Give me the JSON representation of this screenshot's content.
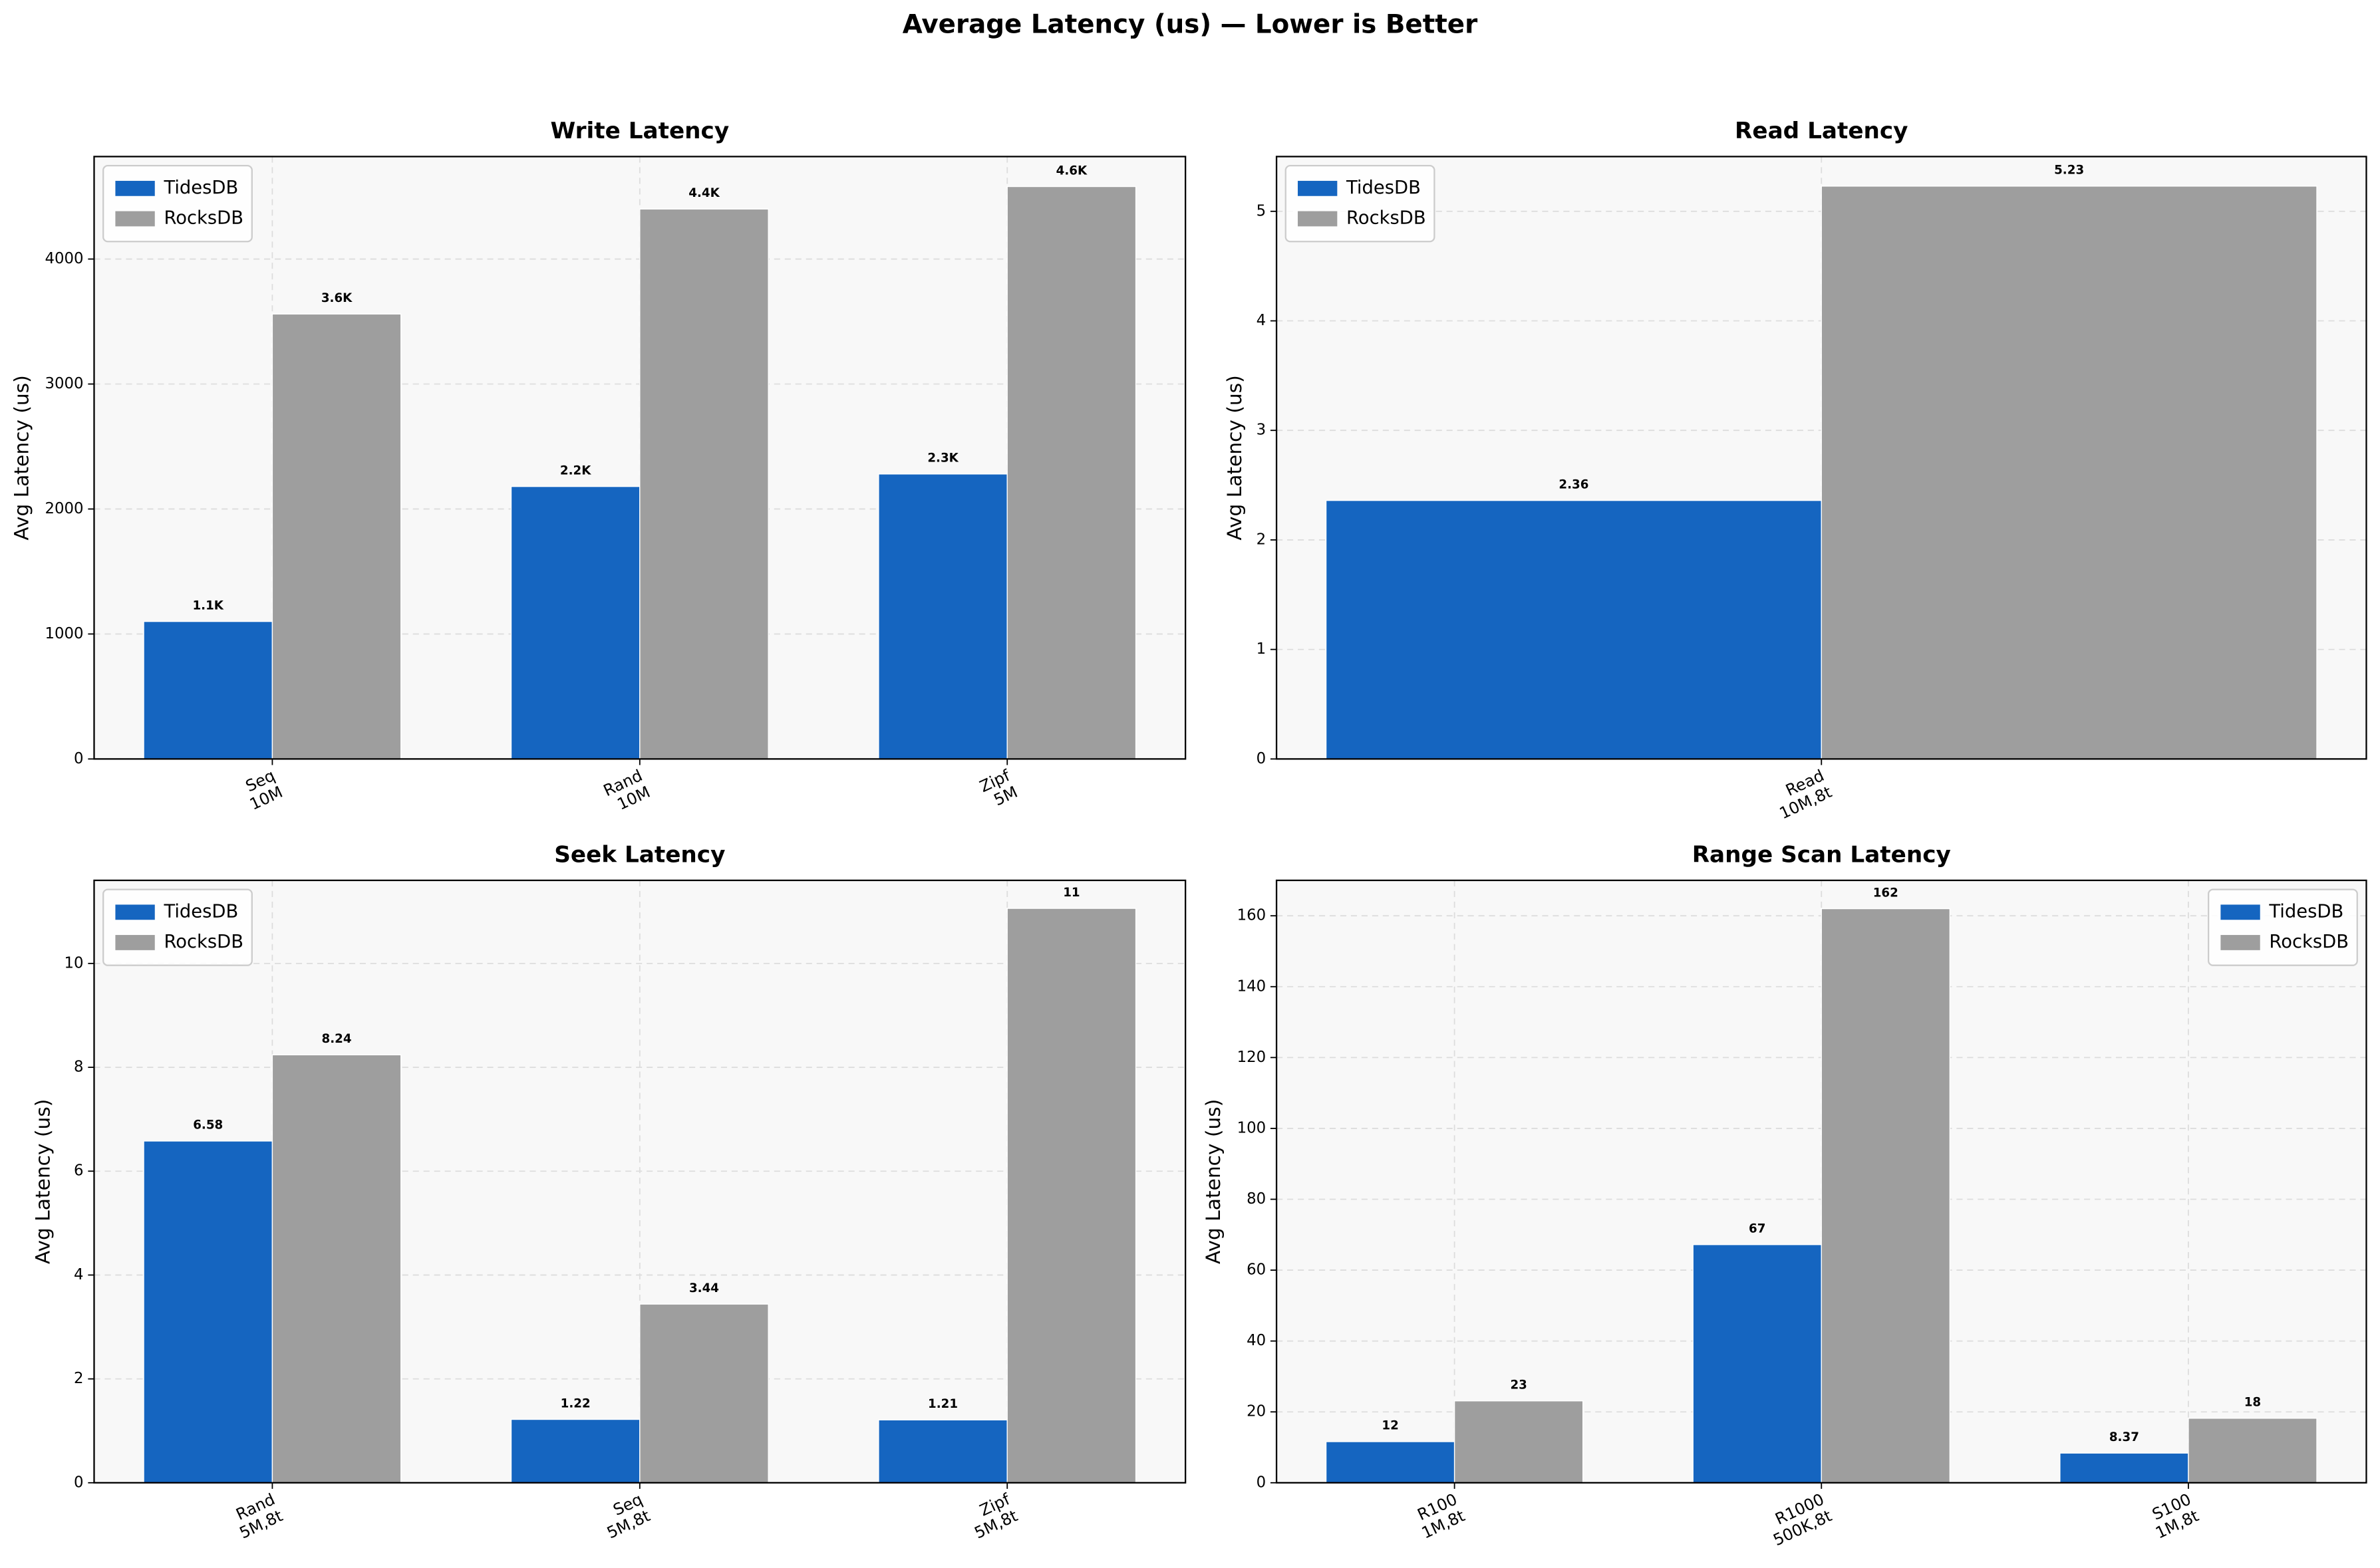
{
  "title": "Average Latency (us) — Lower is Better",
  "chart_data": [
    {
      "type": "bar",
      "title": "Write Latency",
      "ylabel": "Avg Latency (us)",
      "legend": "upper left",
      "grid": true,
      "categories": [
        [
          "Seq",
          "10M"
        ],
        [
          "Rand",
          "10M"
        ],
        [
          "Zipf",
          "5M"
        ]
      ],
      "series": [
        {
          "name": "TidesDB",
          "color": "#1565c0",
          "label_color": "#1565c0",
          "values": [
            1100,
            2180,
            2280
          ],
          "value_labels": [
            "1.1K",
            "2.2K",
            "2.3K"
          ]
        },
        {
          "name": "RocksDB",
          "color": "#9e9e9e",
          "label_color": "#555555",
          "values": [
            3560,
            4400,
            4580
          ],
          "value_labels": [
            "3.6K",
            "4.4K",
            "4.6K"
          ]
        }
      ],
      "ylim": [
        0,
        4820
      ],
      "yticks": [
        0,
        1000,
        2000,
        3000,
        4000
      ]
    },
    {
      "type": "bar",
      "title": "Read Latency",
      "ylabel": "Avg Latency (us)",
      "legend": "upper left",
      "grid": true,
      "categories": [
        [
          "Read",
          "10M,8t"
        ]
      ],
      "series": [
        {
          "name": "TidesDB",
          "color": "#1565c0",
          "label_color": "#1565c0",
          "values": [
            2.36
          ]
        },
        {
          "name": "RocksDB",
          "color": "#9e9e9e",
          "label_color": "#555555",
          "values": [
            5.23
          ]
        }
      ],
      "ylim": [
        0,
        5.5
      ],
      "yticks": [
        0,
        1,
        2,
        3,
        4,
        5
      ]
    },
    {
      "type": "bar",
      "title": "Seek Latency",
      "ylabel": "Avg Latency (us)",
      "legend": "upper left",
      "grid": true,
      "categories": [
        [
          "Rand",
          "5M,8t"
        ],
        [
          "Seq",
          "5M,8t"
        ],
        [
          "Zipf",
          "5M,8t"
        ]
      ],
      "series": [
        {
          "name": "TidesDB",
          "color": "#1565c0",
          "label_color": "#1565c0",
          "values": [
            6.58,
            1.22,
            1.21
          ]
        },
        {
          "name": "RocksDB",
          "color": "#9e9e9e",
          "label_color": "#555555",
          "values": [
            8.24,
            3.44,
            11.06
          ],
          "value_labels": [
            "8.24",
            "3.44",
            "11"
          ]
        }
      ],
      "ylim": [
        0,
        11.6
      ],
      "yticks": [
        0,
        2,
        4,
        6,
        8,
        10
      ]
    },
    {
      "type": "bar",
      "title": "Range Scan Latency",
      "ylabel": "Avg Latency (us)",
      "legend": "upper right",
      "grid": true,
      "categories": [
        [
          "R100",
          "1M,8t"
        ],
        [
          "R1000",
          "500K,8t"
        ],
        [
          "S100",
          "1M,8t"
        ]
      ],
      "series": [
        {
          "name": "TidesDB",
          "color": "#1565c0",
          "label_color": "#1565c0",
          "values": [
            11.6,
            67.2,
            8.37
          ],
          "value_labels": [
            "12",
            "67",
            "8.37"
          ]
        },
        {
          "name": "RocksDB",
          "color": "#9e9e9e",
          "label_color": "#555555",
          "values": [
            23.1,
            162,
            18.2
          ],
          "value_labels": [
            "23",
            "162",
            "18"
          ]
        }
      ],
      "ylim": [
        0,
        170
      ],
      "yticks": [
        0,
        20,
        40,
        60,
        80,
        100,
        120,
        140,
        160
      ]
    }
  ]
}
